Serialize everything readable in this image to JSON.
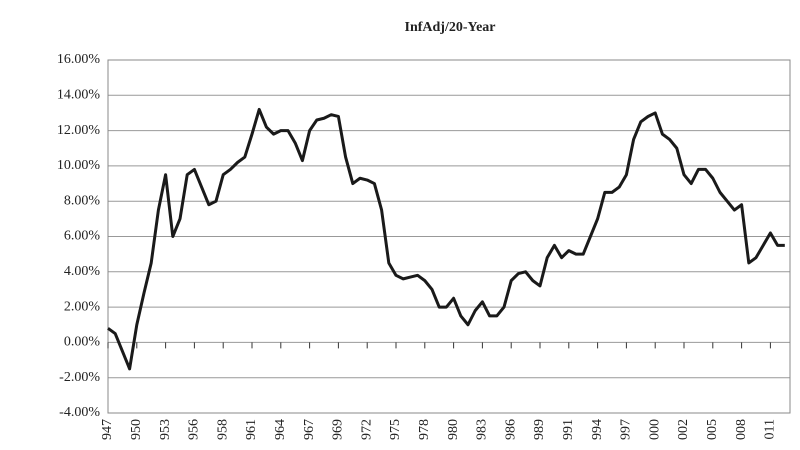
{
  "chart_data": {
    "type": "line",
    "title": "InfAdj/20-Year",
    "categories": [
      "947",
      null,
      null,
      null,
      "950",
      null,
      null,
      null,
      "953",
      null,
      null,
      null,
      "956",
      null,
      null,
      null,
      "958",
      null,
      null,
      null,
      "961",
      null,
      null,
      null,
      "964",
      null,
      null,
      null,
      "967",
      null,
      null,
      null,
      "969",
      null,
      null,
      null,
      "972",
      null,
      null,
      null,
      "975",
      null,
      null,
      null,
      "978",
      null,
      null,
      null,
      "980",
      null,
      null,
      null,
      "983",
      null,
      null,
      null,
      "986",
      null,
      null,
      null,
      "989",
      null,
      null,
      null,
      "991",
      null,
      null,
      null,
      "994",
      null,
      null,
      null,
      "997",
      null,
      null,
      null,
      "000",
      null,
      null,
      null,
      "002",
      null,
      null,
      null,
      "005",
      null,
      null,
      null,
      "008",
      null,
      null,
      null,
      "011",
      null,
      null
    ],
    "series": [
      {
        "color": "#1a1a1a",
        "values": [
          0.8,
          0.5,
          -0.5,
          -1.5,
          1.0,
          2.8,
          4.5,
          7.5,
          9.5,
          6,
          7,
          9.5,
          9.8,
          8.8,
          7.8,
          8.0,
          9.5,
          9.8,
          10.2,
          10.5,
          11.8,
          13.2,
          12.2,
          11.8,
          12.0,
          12.0,
          11.3,
          10.3,
          12.0,
          12.6,
          12.7,
          12.9,
          12.8,
          10.5,
          9.0,
          9.3,
          9.2,
          9.0,
          7.5,
          4.5,
          3.8,
          3.6,
          3.7,
          3.8,
          3.5,
          3.0,
          2.0,
          2.0,
          2.5,
          1.5,
          1.0,
          1.8,
          2.3,
          1.5,
          1.5,
          2.0,
          3.5,
          3.9,
          4.0,
          3.5,
          3.2,
          4.8,
          5.5,
          4.8,
          5.2,
          5.0,
          5.0,
          6.0,
          7.0,
          8.5,
          8.5,
          8.8,
          9.5,
          11.5,
          12.5,
          12.8,
          13.0,
          11.8,
          11.5,
          11.0,
          9.5,
          9.0,
          9.8,
          9.8,
          9.3,
          8.5,
          8.0,
          7.5,
          7.8,
          4.5,
          4.8,
          5.5,
          6.2,
          5.5,
          5.5
        ]
      }
    ],
    "ylim": [
      -4,
      16
    ],
    "yticks": [
      {
        "value": -4,
        "label": "-4.00%"
      },
      {
        "value": -2,
        "label": "-2.00%"
      },
      {
        "value": 0,
        "label": "0.00%"
      },
      {
        "value": 2,
        "label": "2.00%"
      },
      {
        "value": 4,
        "label": "4.00%"
      },
      {
        "value": 6,
        "label": "6.00%"
      },
      {
        "value": 8,
        "label": "8.00%"
      },
      {
        "value": 10,
        "label": "10.00%"
      },
      {
        "value": 12,
        "label": "12.00%"
      },
      {
        "value": 14,
        "label": "14.00%"
      },
      {
        "value": 16,
        "label": "16.00%"
      }
    ],
    "grid": true
  }
}
